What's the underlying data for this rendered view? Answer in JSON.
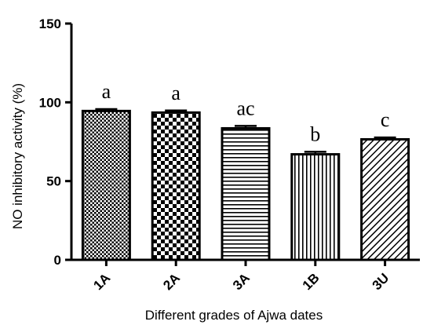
{
  "chart_data": {
    "type": "bar",
    "categories": [
      "1A",
      "2A",
      "3A",
      "1B",
      "3U"
    ],
    "values": [
      94.5,
      93.5,
      83.5,
      67,
      76.5
    ],
    "errors": [
      1.2,
      1.3,
      1.5,
      1.6,
      1.2
    ],
    "significance_labels": [
      "a",
      "a",
      "ac",
      "b",
      "c"
    ],
    "patterns": [
      "dots",
      "checker",
      "horizontal-lines",
      "vertical-lines",
      "diagonal-lines"
    ],
    "title": "",
    "xlabel": "Different grades of Ajwa dates",
    "ylabel": "NO inhibitory activity (%)",
    "ylim": [
      0,
      150
    ],
    "yticks": [
      0,
      50,
      100,
      150
    ],
    "grid": false,
    "legend": "none"
  }
}
